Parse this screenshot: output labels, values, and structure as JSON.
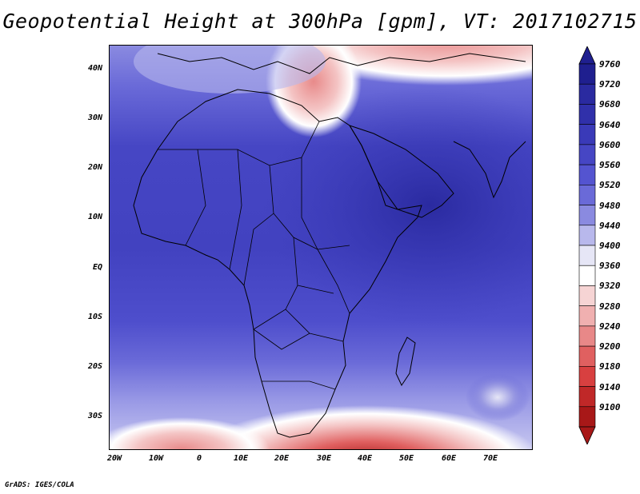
{
  "title": "Geopotential Height at 300hPa [gpm], VT: 2017102715",
  "credit": "GrADS: IGES/COLA",
  "map": {
    "region": "Africa",
    "lat_labels": [
      "40N",
      "30N",
      "20N",
      "10N",
      "EQ",
      "10S",
      "20S",
      "30S"
    ],
    "lon_labels": [
      "20W",
      "10W",
      "0",
      "10E",
      "20E",
      "30E",
      "40E",
      "50E",
      "60E",
      "70E"
    ]
  },
  "colorbar": {
    "labels": [
      "9760",
      "9720",
      "9680",
      "9640",
      "9600",
      "9560",
      "9520",
      "9480",
      "9440",
      "9400",
      "9360",
      "9320",
      "9280",
      "9240",
      "9200",
      "9180",
      "9140",
      "9100"
    ],
    "colors": [
      "#1f1f8f",
      "#2a2aa0",
      "#3030aa",
      "#3a3ab8",
      "#4646c4",
      "#5454d0",
      "#6a6ad8",
      "#8a8ae0",
      "#b8b8ec",
      "#e6e6f6",
      "#ffffff",
      "#f6d4d4",
      "#f0b0b0",
      "#e88888",
      "#e06060",
      "#d84040",
      "#c02828",
      "#a81818"
    ]
  },
  "icons": {
    "cbar_top": "triangle-up-icon",
    "cbar_bottom": "triangle-down-icon"
  }
}
